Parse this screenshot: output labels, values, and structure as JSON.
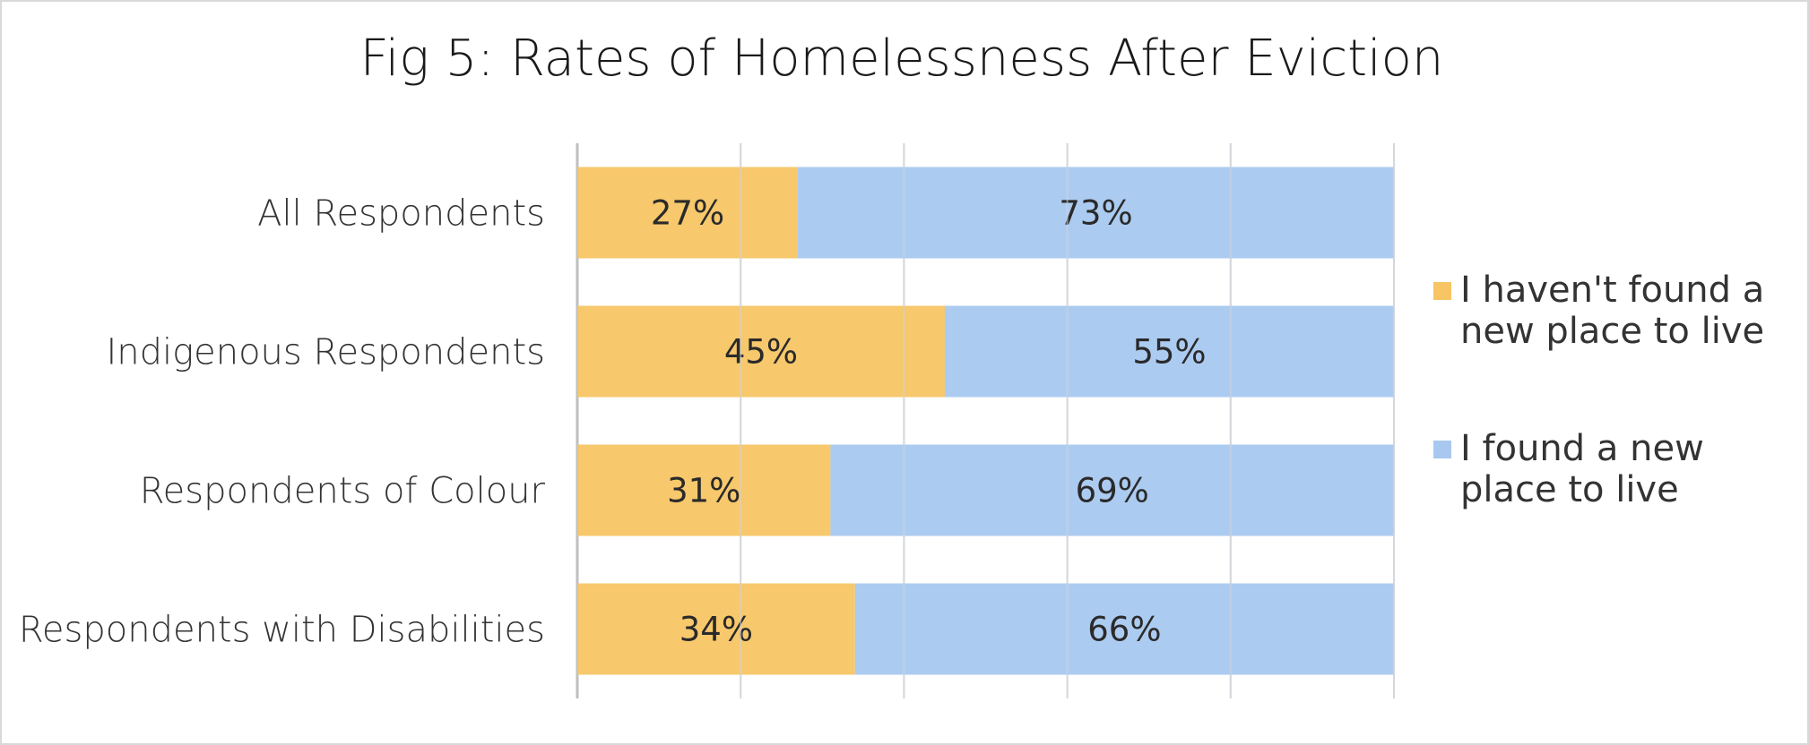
{
  "chart_data": {
    "type": "bar",
    "orientation": "horizontal",
    "stacked": true,
    "title": "Fig 5: Rates of Homelessness After Eviction",
    "categories": [
      "All Respondents",
      "Indigenous Respondents",
      "Respondents of Colour",
      "Respondents with Disabilities"
    ],
    "series": [
      {
        "name": "I haven't found a new place to live",
        "legend_lines": [
          "I haven't found a",
          "new place to live"
        ],
        "color": "#F7C564",
        "values": [
          27,
          45,
          31,
          34
        ],
        "labels": [
          "27%",
          "45%",
          "31%",
          "34%"
        ]
      },
      {
        "name": "I found a new place to live",
        "legend_lines": [
          "I found a new",
          "place to live"
        ],
        "color": "#A8C8EF",
        "values": [
          73,
          55,
          69,
          66
        ],
        "labels": [
          "73%",
          "55%",
          "69%",
          "66%"
        ]
      }
    ],
    "xlim": [
      0,
      100
    ],
    "grid": true,
    "legend_position": "right",
    "axis_line_color": "#bfbfbf",
    "grid_color": "#d9d9d9"
  }
}
